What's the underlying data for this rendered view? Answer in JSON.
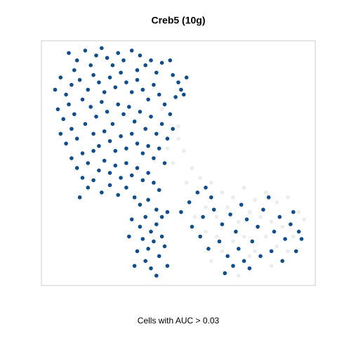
{
  "chart_data": {
    "type": "scatter",
    "title": "Creb5 (10g)",
    "x_label": "Cells with AUC > 0.03",
    "xlim": [
      0,
      100
    ],
    "ylim": [
      0,
      100
    ],
    "grid": false,
    "series": [
      {
        "color": "#ececec",
        "x": [
          50,
          52,
          48,
          55,
          53,
          58,
          62,
          66,
          70,
          74,
          78,
          82,
          86,
          90,
          94,
          96,
          60,
          64,
          68,
          72,
          76,
          80,
          84,
          88,
          92,
          56,
          60,
          64,
          70,
          74,
          78,
          82,
          86,
          90,
          62,
          66,
          72,
          76,
          84,
          44,
          46,
          50
        ],
        "y": [
          60,
          55,
          50,
          48,
          42,
          44,
          42,
          38,
          36,
          40,
          35,
          38,
          34,
          36,
          30,
          27,
          32,
          28,
          32,
          26,
          30,
          28,
          26,
          24,
          20,
          28,
          22,
          20,
          18,
          20,
          14,
          20,
          16,
          14,
          10,
          14,
          4,
          12,
          8,
          72,
          56,
          65
        ]
      },
      {
        "color": "#104e8b",
        "x": [
          10,
          13,
          16,
          20,
          22,
          24,
          18,
          12,
          26,
          28,
          30,
          33,
          36,
          38,
          40,
          44,
          47,
          35,
          42,
          48,
          50,
          51,
          52,
          53,
          49,
          5,
          7,
          9,
          11,
          14,
          17,
          19,
          21,
          23,
          25,
          27,
          29,
          31,
          33,
          35,
          37,
          39,
          41,
          43,
          45,
          47,
          6,
          8,
          10,
          12,
          15,
          18,
          20,
          22,
          24,
          26,
          28,
          30,
          32,
          34,
          36,
          38,
          40,
          42,
          44,
          46,
          48,
          7,
          9,
          11,
          13,
          16,
          19,
          21,
          23,
          25,
          27,
          29,
          31,
          33,
          35,
          37,
          39,
          41,
          43,
          45,
          11,
          13,
          15,
          17,
          19,
          21,
          23,
          25,
          27,
          29,
          31,
          33,
          35,
          37,
          39,
          41,
          43,
          15,
          17,
          19,
          22,
          25,
          28,
          31,
          34,
          14,
          36,
          39,
          42,
          44,
          46,
          33,
          36,
          38,
          40,
          42,
          44,
          37,
          39,
          41,
          43,
          35,
          38,
          40,
          42,
          34,
          45,
          46,
          32,
          51,
          54,
          57,
          60,
          62,
          59,
          63,
          66,
          69,
          71,
          73,
          75,
          77,
          79,
          81,
          83,
          85,
          87,
          89,
          91,
          93,
          95,
          65,
          68,
          70,
          67,
          72,
          74,
          76,
          80,
          84,
          88,
          92,
          94,
          58,
          61,
          55
        ],
        "y": [
          95,
          92,
          96,
          94,
          97,
          93,
          90,
          88,
          90,
          95,
          92,
          96,
          94,
          90,
          92,
          91,
          92,
          88,
          87,
          86,
          83,
          80,
          78,
          85,
          77,
          80,
          85,
          78,
          82,
          84,
          80,
          86,
          83,
          79,
          85,
          81,
          87,
          83,
          79,
          84,
          80,
          76,
          82,
          78,
          74,
          70,
          72,
          68,
          74,
          70,
          76,
          73,
          69,
          75,
          71,
          66,
          74,
          70,
          73,
          67,
          71,
          64,
          69,
          62,
          66,
          60,
          64,
          62,
          58,
          64,
          60,
          66,
          62,
          57,
          63,
          59,
          55,
          61,
          56,
          62,
          58,
          54,
          57,
          52,
          56,
          50,
          52,
          48,
          54,
          50,
          55,
          47,
          51,
          46,
          49,
          44,
          50,
          45,
          48,
          43,
          46,
          42,
          39,
          44,
          40,
          43,
          38,
          41,
          37,
          40,
          36,
          36,
          33,
          35,
          31,
          28,
          30,
          27,
          24,
          28,
          22,
          25,
          20,
          19,
          15,
          18,
          12,
          14,
          10,
          7,
          4,
          8,
          16,
          8,
          20,
          30,
          34,
          38,
          40,
          36,
          28,
          31,
          25,
          29,
          22,
          33,
          27,
          18,
          24,
          31,
          36,
          22,
          28,
          19,
          25,
          14,
          19,
          18,
          12,
          8,
          5,
          15,
          10,
          7,
          12,
          14,
          10,
          30,
          22,
          20,
          15,
          24
        ]
      }
    ]
  }
}
